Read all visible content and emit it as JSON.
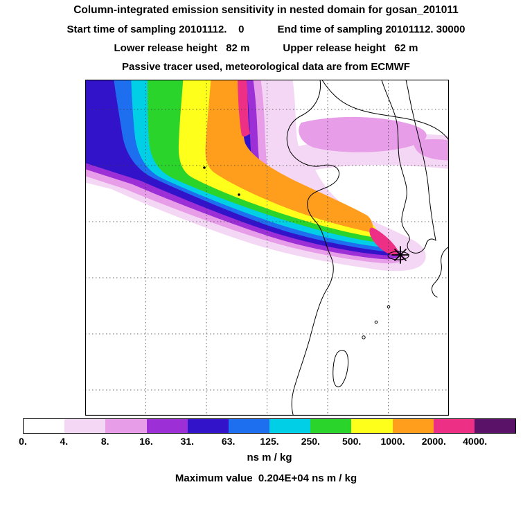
{
  "header": {
    "title": "Column-integrated emission sensitivity in nested domain for gosan_201011",
    "start_time": "Start time of sampling 20101112.    0",
    "end_time": "End time of sampling 20101112. 30000",
    "lower_release": "Lower release height   82 m",
    "upper_release": "Upper release height   62 m",
    "tracer_line": "Passive tracer used, meteorological data are from ECMWF"
  },
  "chart_data": {
    "type": "heatmap",
    "title": "Column-integrated emission sensitivity in nested domain for gosan_201011",
    "variable": "Column-integrated emission sensitivity",
    "units": "ns m / kg",
    "station": "gosan_201011",
    "sampling": {
      "start": "20101112.    0",
      "end": "20101112. 30000",
      "lower_release_height_m": 82,
      "upper_release_height_m": 62,
      "tracer": "Passive tracer used, meteorological data are from ECMWF"
    },
    "colorbar": {
      "orientation": "horizontal",
      "levels": [
        0,
        4,
        8,
        16,
        31,
        63,
        125,
        250,
        500,
        1000,
        2000,
        4000
      ],
      "level_labels": [
        "0.",
        "4.",
        "8.",
        "16.",
        "31.",
        "63.",
        "125.",
        "250.",
        "500.",
        "1000.",
        "2000.",
        "4000."
      ],
      "palette": [
        "#ffffff",
        "#f4d7f4",
        "#e79de7",
        "#9c2fd6",
        "#3313c9",
        "#1e6ef0",
        "#00cfe6",
        "#2bd42b",
        "#ffff1c",
        "#ff9e1c",
        "#ee2f86",
        "#5a1268"
      ],
      "last_segment_meaning": "greater than 4000"
    },
    "max_value": {
      "text": "Maximum value  0.204E+04 ns m / kg",
      "value": 2040,
      "units": "ns m / kg"
    },
    "receptor": {
      "station": "gosan",
      "marker": "asterisk-star",
      "location_note": "marked near Jeju Island in the eastern part of the domain"
    },
    "map": {
      "region": "East Asia: eastern China, Yellow Sea, Korean Peninsula, Jeju, Taiwan, western Japan",
      "gridlines": "dotted latitude/longitude grid, 5 vertical and 6 horizontal lines"
    },
    "plume": {
      "description": "High-sensitivity plume extends from the Gosan receptor north-westward across the Yellow Sea and northern China to the top-left of the domain; core values 500-2000+ ns m/kg (yellow-orange-red), fringes 4-125 ns m/kg (pink-purple-blue-cyan); a diffuse 4-16 ns m/kg band stretches east across the upper part of the domain."
    }
  },
  "footer": {
    "unit_label": "ns m / kg",
    "max_line": "Maximum value  0.204E+04 ns m / kg"
  }
}
